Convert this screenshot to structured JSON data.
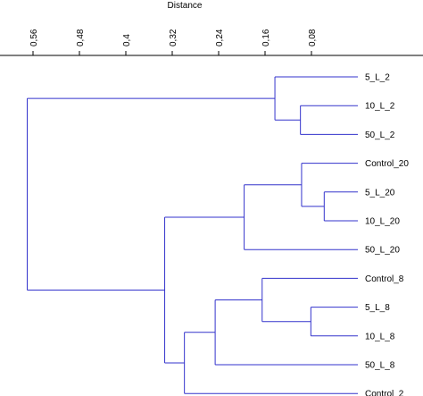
{
  "chart_data": {
    "type": "dendrogram",
    "orientation": "horizontal-leaves-right",
    "title": "Distance",
    "xlabel": "Distance",
    "axis_position": "top",
    "x_reversed": true,
    "ticks": [
      0.56,
      0.48,
      0.4,
      0.32,
      0.24,
      0.16,
      0.08
    ],
    "tick_labels": [
      "0,56",
      "0,48",
      "0,4",
      "0,32",
      "0,24",
      "0,16",
      "0,08"
    ],
    "line_color": "#3333cc",
    "leaves": [
      "5_L_2",
      "10_L_2",
      "50_L_2",
      "Control_20",
      "5_L_20",
      "10_L_20",
      "50_L_20",
      "Control_8",
      "5_L_8",
      "10_L_8",
      "50_L_8",
      "Control_2"
    ],
    "merges": [
      {
        "id": "a",
        "left": "10_L_2",
        "right": "50_L_2",
        "height": 0.099
      },
      {
        "id": "b",
        "left": "5_L_2",
        "right": "a",
        "height": 0.143
      },
      {
        "id": "c",
        "left": "5_L_20",
        "right": "10_L_20",
        "height": 0.058
      },
      {
        "id": "d",
        "left": "Control_20",
        "right": "c",
        "height": 0.097
      },
      {
        "id": "e",
        "left": "d",
        "right": "50_L_20",
        "height": 0.196
      },
      {
        "id": "f",
        "left": "5_L_8",
        "right": "10_L_8",
        "height": 0.081
      },
      {
        "id": "g",
        "left": "Control_8",
        "right": "f",
        "height": 0.165
      },
      {
        "id": "h",
        "left": "g",
        "right": "50_L_8",
        "height": 0.246
      },
      {
        "id": "i",
        "left": "h",
        "right": "Control_2",
        "height": 0.299
      },
      {
        "id": "j",
        "left": "e",
        "right": "i",
        "height": 0.333
      },
      {
        "id": "k",
        "left": "b",
        "right": "j",
        "height": 0.57
      }
    ]
  }
}
